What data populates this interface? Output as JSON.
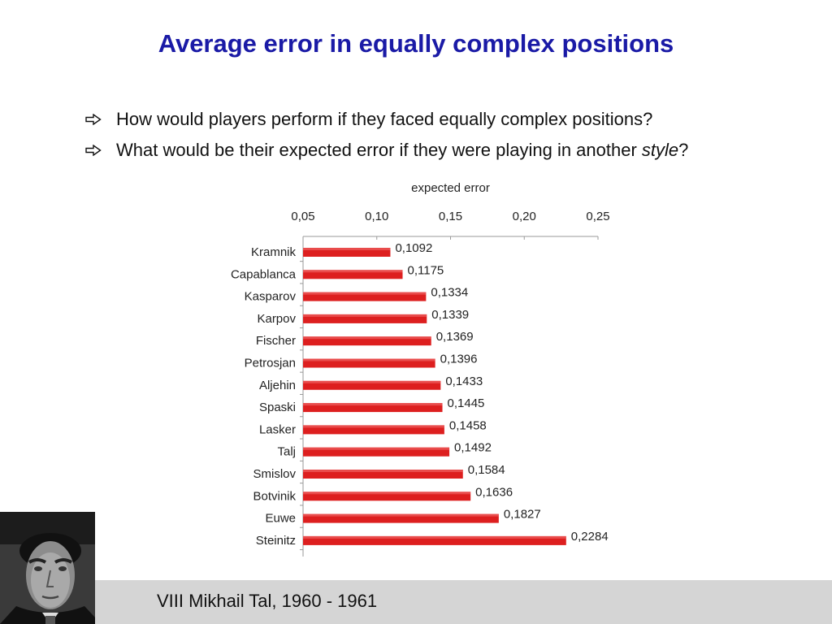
{
  "slide": {
    "title": "Average error in equally complex positions",
    "bullets": [
      {
        "icon": "outline-arrow-right-icon",
        "text": "How would players perform if they faced equally complex positions?"
      },
      {
        "icon": "outline-arrow-right-icon",
        "text_before": "What would be their expected error if they were playing in another ",
        "text_italic": "style",
        "text_after": "?"
      }
    ],
    "caption": "VIII Mikhail Tal, 1960 - 1961",
    "colors": {
      "title": "#1a1aa6",
      "bar": "#dd1f1f",
      "footer": "#d5d5d5"
    }
  },
  "chart_data": {
    "type": "bar",
    "orientation": "horizontal",
    "title": "expected error",
    "axis_position": "top",
    "xlim": [
      0.05,
      0.25
    ],
    "xticks": [
      "0,05",
      "0,10",
      "0,15",
      "0,20",
      "0,25"
    ],
    "xtick_values": [
      0.05,
      0.1,
      0.15,
      0.2,
      0.25
    ],
    "grid": false,
    "categories": [
      "Kramnik",
      "Capablanca",
      "Kasparov",
      "Karpov",
      "Fischer",
      "Petrosjan",
      "Aljehin",
      "Spaski",
      "Lasker",
      "Talj",
      "Smislov",
      "Botvinik",
      "Euwe",
      "Steinitz"
    ],
    "values": [
      0.1092,
      0.1175,
      0.1334,
      0.1339,
      0.1369,
      0.1396,
      0.1433,
      0.1445,
      0.1458,
      0.1492,
      0.1584,
      0.1636,
      0.1827,
      0.2284
    ],
    "value_labels": [
      "0,1092",
      "0,1175",
      "0,1334",
      "0,1339",
      "0,1369",
      "0,1396",
      "0,1433",
      "0,1445",
      "0,1458",
      "0,1492",
      "0,1584",
      "0,1636",
      "0,1827",
      "0,2284"
    ]
  }
}
